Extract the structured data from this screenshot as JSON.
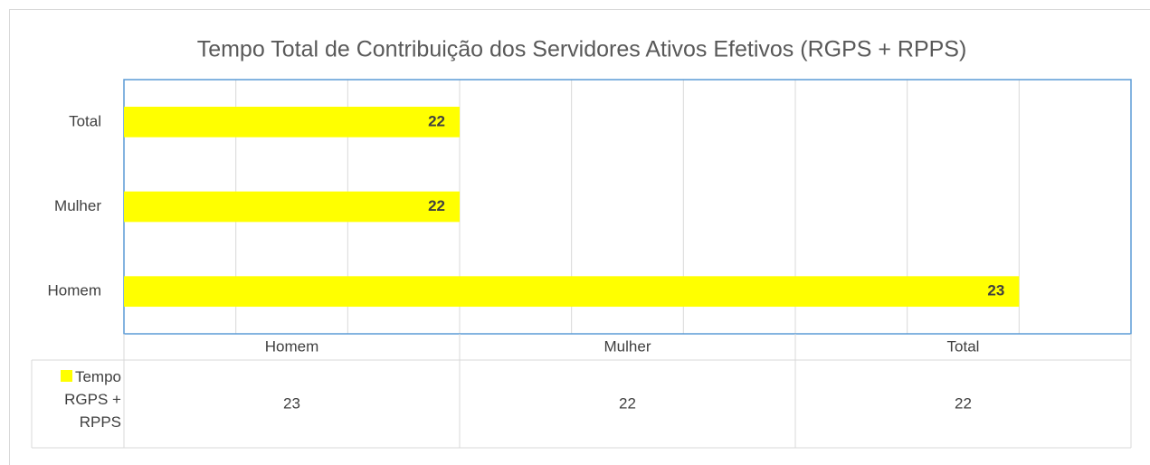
{
  "chart_data": {
    "type": "barh",
    "title": "Tempo Total de Contribuição dos Servidores Ativos Efetivos (RGPS + RPPS)",
    "categories": [
      "Homem",
      "Mulher",
      "Total"
    ],
    "series": [
      {
        "name": "Tempo RGPS + RPPS",
        "color": "#ffff00",
        "values": [
          23,
          22,
          22
        ]
      }
    ],
    "xlim": [
      21.4,
      23.2
    ],
    "xticks": [
      21.4,
      21.6,
      21.8,
      22,
      22.2,
      22.4,
      22.6,
      22.8,
      23,
      23.2
    ],
    "grid": true,
    "data_table": true
  }
}
